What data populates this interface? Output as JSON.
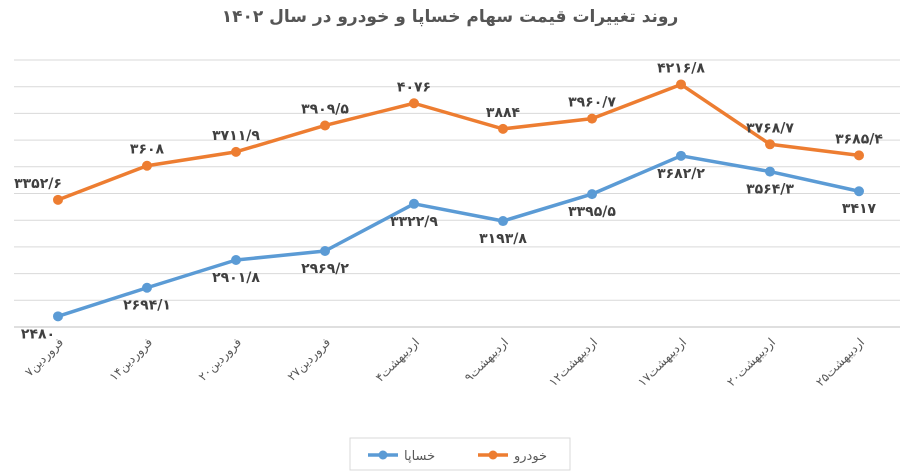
{
  "chart_data": {
    "type": "line",
    "title": "روند تغییرات قیمت سهام خساپا و خودرو در سال ۱۴۰۲",
    "xlabel": "",
    "ylabel": "",
    "ylim": [
      2400,
      4400
    ],
    "ystep": 200,
    "grid": true,
    "y_tick_labels_shown": false,
    "legend_position": "bottom",
    "categories": [
      "۷فروردین",
      "۱۴فروردین",
      "۲۰فروردین",
      "۲۷فروردین",
      "۴اردیبهشت",
      "۹اردیبهشت",
      "۱۲اردیبهشت",
      "۱۷اردیبهشت",
      "۲۰اردیبهشت",
      "۲۵اردیبهشت"
    ],
    "series": [
      {
        "name": "خودرو",
        "color": "#ED7D31",
        "label_side": "above",
        "values": [
          3352.6,
          3608,
          3711.9,
          3909.5,
          4076,
          3884,
          3960.7,
          4216.8,
          3768.7,
          3685.4
        ],
        "labels": [
          "۳۳۵۲/۶",
          "۳۶۰۸",
          "۳۷۱۱/۹",
          "۳۹۰۹/۵",
          "۴۰۷۶",
          "۳۸۸۴",
          "۳۹۶۰/۷",
          "۴۲۱۶/۸",
          "۳۷۶۸/۷",
          "۳۶۸۵/۴"
        ]
      },
      {
        "name": "خساپا",
        "color": "#5B9BD5",
        "label_side": "below",
        "values": [
          2480,
          2694.1,
          2901.8,
          2969.2,
          3322.9,
          3193.8,
          3395.5,
          3682.2,
          3564.3,
          3417
        ],
        "labels": [
          "۲۴۸۰",
          "۲۶۹۴/۱",
          "۲۹۰۱/۸",
          "۲۹۶۹/۲",
          "۳۳۲۲/۹",
          "۳۱۹۳/۸",
          "۳۳۹۵/۵",
          "۳۶۸۲/۲",
          "۳۵۶۴/۳",
          "۳۴۱۷"
        ]
      }
    ]
  }
}
